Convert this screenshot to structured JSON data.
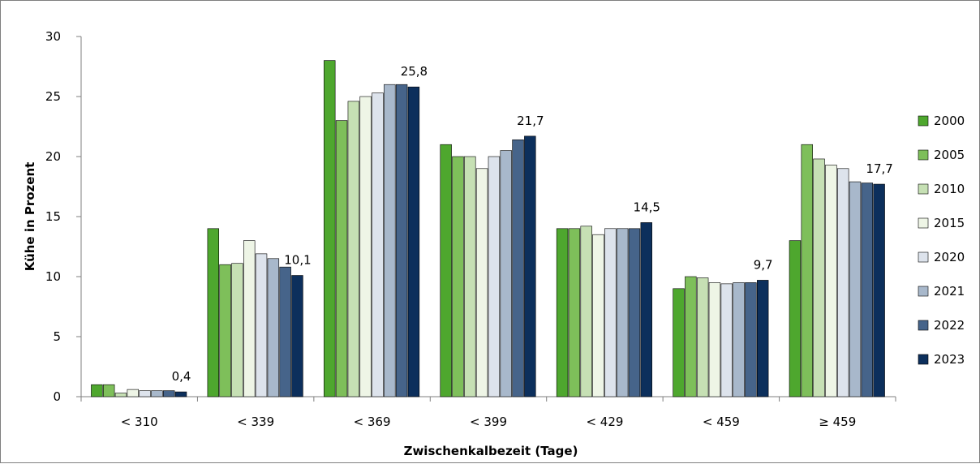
{
  "chart_data": {
    "type": "bar",
    "xlabel": "Zwischenkalbezeit (Tage)",
    "ylabel": "Kühe in Prozent",
    "ylim": [
      0,
      30
    ],
    "yticks": [
      0,
      5,
      10,
      15,
      20,
      25,
      30
    ],
    "grid": false,
    "legend_position": "right",
    "categories": [
      "< 310",
      "< 339",
      "< 369",
      "< 399",
      "< 429",
      "< 459",
      "≥ 459"
    ],
    "series": [
      {
        "name": "2000",
        "color": "#4ea72e",
        "values": [
          1.0,
          14.0,
          28.0,
          21.0,
          14.0,
          9.0,
          13.0
        ]
      },
      {
        "name": "2005",
        "color": "#7ebf5a",
        "values": [
          1.0,
          11.0,
          23.0,
          20.0,
          14.0,
          10.0,
          21.0
        ]
      },
      {
        "name": "2010",
        "color": "#c6e0b4",
        "values": [
          0.3,
          11.1,
          24.6,
          20.0,
          14.2,
          9.9,
          19.8
        ]
      },
      {
        "name": "2015",
        "color": "#eef5e6",
        "values": [
          0.6,
          13.0,
          25.0,
          19.0,
          13.5,
          9.5,
          19.3
        ]
      },
      {
        "name": "2020",
        "color": "#dde3ec",
        "values": [
          0.5,
          11.9,
          25.3,
          20.0,
          14.0,
          9.4,
          19.0
        ]
      },
      {
        "name": "2021",
        "color": "#a8b8cb",
        "values": [
          0.5,
          11.5,
          26.0,
          20.5,
          14.0,
          9.5,
          17.9
        ]
      },
      {
        "name": "2022",
        "color": "#46648a",
        "values": [
          0.5,
          10.8,
          26.0,
          21.4,
          14.0,
          9.5,
          17.8
        ]
      },
      {
        "name": "2023",
        "color": "#0c2f5c",
        "values": [
          0.4,
          10.1,
          25.8,
          21.7,
          14.5,
          9.7,
          17.7
        ]
      }
    ],
    "data_labels": {
      "series": "2023",
      "texts": [
        "0,4",
        "10,1",
        "25,8",
        "21,7",
        "14,5",
        "9,7",
        "17,7"
      ]
    }
  }
}
